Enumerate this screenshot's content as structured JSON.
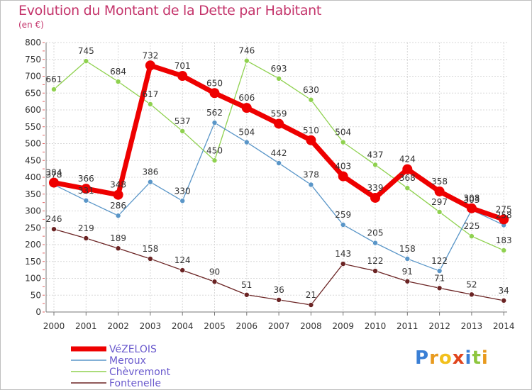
{
  "title": "Evolution du Montant de la Dette par Habitant",
  "subtitle": "(en €)",
  "logo": {
    "letters": [
      "P",
      "r",
      "o",
      "x",
      "i",
      "t",
      "i"
    ],
    "colors": [
      "#3a7fd5",
      "#e89a1e",
      "#f2c01c",
      "#e0441c",
      "#3a7fd5",
      "#8ec63f",
      "#e89a1e"
    ]
  },
  "chart_data": {
    "type": "line",
    "x": [
      "2000",
      "2001",
      "2002",
      "2003",
      "2004",
      "2005",
      "2006",
      "2007",
      "2008",
      "2009",
      "2010",
      "2011",
      "2012",
      "2013",
      "2014"
    ],
    "yticks": [
      0,
      50,
      100,
      150,
      200,
      250,
      300,
      350,
      400,
      450,
      500,
      550,
      600,
      650,
      700,
      750,
      800
    ],
    "ylim": [
      0,
      800
    ],
    "grid": true,
    "legend_position": "bottom-left",
    "series": [
      {
        "name": "Fontenelle",
        "color": "#6b2424",
        "values": [
          246,
          219,
          189,
          158,
          124,
          90,
          51,
          36,
          21,
          143,
          122,
          91,
          71,
          52,
          34
        ],
        "labels": [
          "246",
          "219",
          "189",
          "158",
          "124",
          "90",
          "51",
          "36",
          "21",
          "143",
          "122",
          "91",
          "71",
          "52",
          "34"
        ]
      },
      {
        "name": "Chèvremont",
        "color": "#8fd14f",
        "values": [
          661,
          745,
          684,
          617,
          537,
          450,
          746,
          693,
          630,
          504,
          437,
          368,
          297,
          225,
          183
        ],
        "labels": [
          "661",
          "745",
          "684",
          "617",
          "537",
          "450",
          "746",
          "693",
          "630",
          "504",
          "437",
          "368",
          "297",
          "225",
          "183"
        ]
      },
      {
        "name": "Meroux",
        "color": "#5a96c8",
        "values": [
          378,
          331,
          286,
          386,
          330,
          562,
          504,
          442,
          378,
          259,
          205,
          158,
          122,
          303,
          258
        ],
        "labels": [
          "378",
          "331",
          "286",
          "386",
          "330",
          "562",
          "504",
          "442",
          "378",
          "259",
          "205",
          "158",
          "122",
          "303",
          "258"
        ]
      },
      {
        "name": "VéZELOIS",
        "color": "#ee0000",
        "values": [
          384,
          366,
          348,
          732,
          701,
          650,
          606,
          559,
          510,
          403,
          339,
          424,
          358,
          308,
          275
        ],
        "labels": [
          "384",
          "366",
          "348",
          "732",
          "701",
          "650",
          "606",
          "559",
          "510",
          "403",
          "339",
          "424",
          "358",
          "308",
          "275"
        ]
      }
    ],
    "legend": [
      "VéZELOIS",
      "Meroux",
      "Chèvremont",
      "Fontenelle"
    ]
  }
}
